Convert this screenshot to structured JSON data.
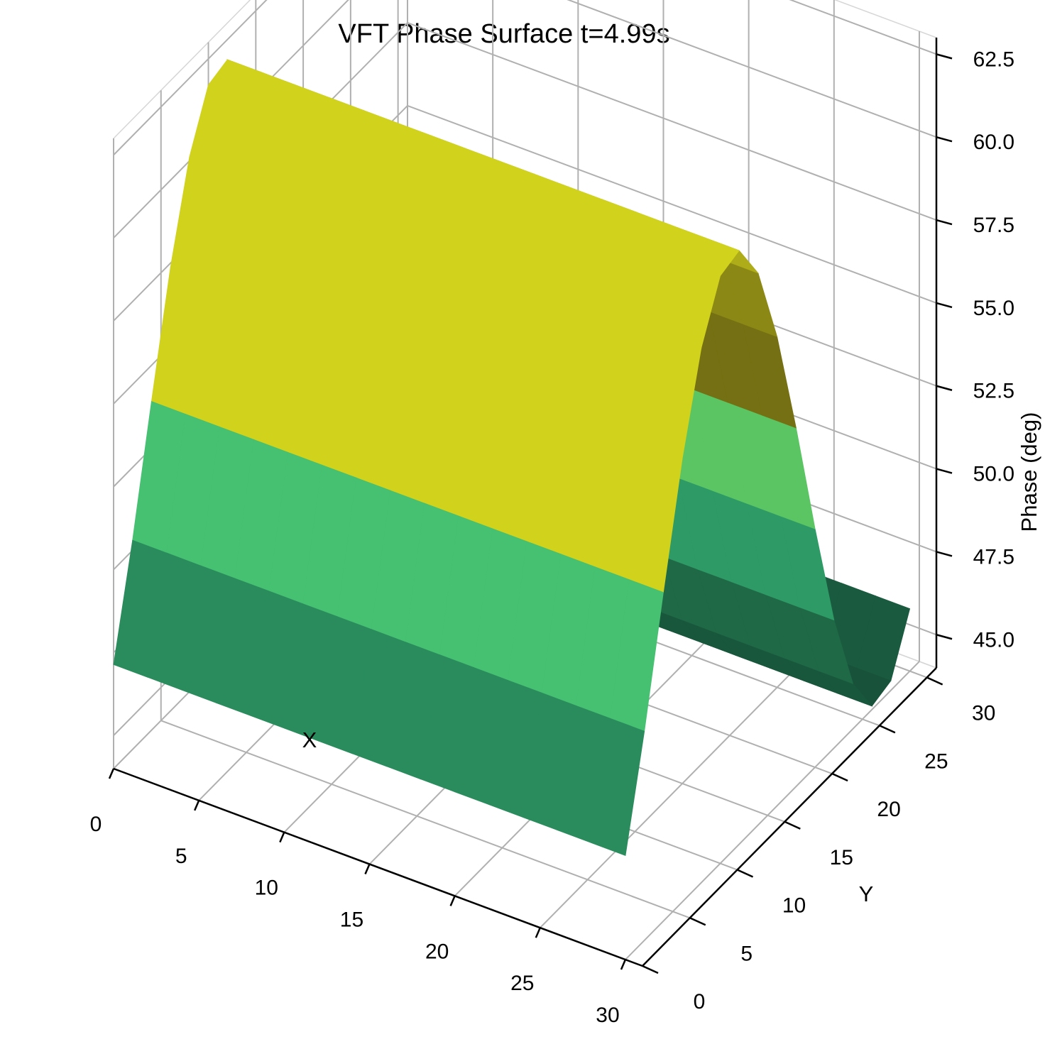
{
  "chart_data": {
    "type": "surface3d",
    "title": "VFT Phase Surface t=4.99s",
    "xlabel": "X",
    "ylabel": "Y",
    "zlabel": "Phase (deg)",
    "xlim": [
      0,
      31
    ],
    "ylim": [
      0,
      31
    ],
    "zlim": [
      44.0,
      63.0
    ],
    "xticks": [
      "0",
      "5",
      "10",
      "15",
      "20",
      "25",
      "30"
    ],
    "yticks": [
      "0",
      "5",
      "10",
      "15",
      "20",
      "25",
      "30"
    ],
    "zticks": [
      "45.0",
      "47.5",
      "50.0",
      "52.5",
      "55.0",
      "57.5",
      "60.0",
      "62.5"
    ],
    "grid": true,
    "colormap": [
      "#17503a",
      "#1f6a47",
      "#2e9a66",
      "#47c272",
      "#8fce3c",
      "#d0d21c",
      "#a79b19",
      "#6e6812"
    ],
    "surface": {
      "x": [
        0,
        2,
        4,
        6,
        8,
        10,
        12,
        14,
        16,
        18,
        20,
        22,
        24,
        26,
        28,
        30
      ],
      "y": [
        0,
        2,
        4,
        6,
        8,
        10,
        12,
        14,
        16,
        18,
        20,
        22,
        24,
        26,
        28,
        30
      ],
      "z_formula": "53 + 9*sin(2*pi*(y-3.5)/31)"
    }
  }
}
